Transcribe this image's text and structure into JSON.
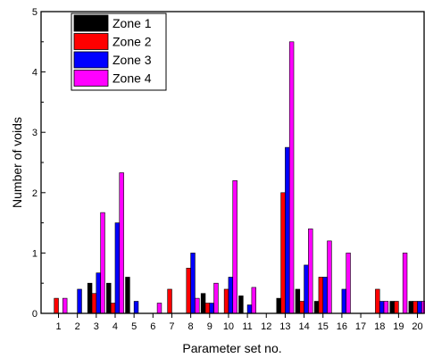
{
  "chart_data": {
    "type": "bar",
    "title": "",
    "xlabel": "Parameter set no.",
    "ylabel": "Number of voids",
    "ylim": [
      0,
      5
    ],
    "yticks": [
      "0",
      "1",
      "2",
      "3",
      "4",
      "5"
    ],
    "categories": [
      "1",
      "2",
      "3",
      "4",
      "5",
      "6",
      "7",
      "8",
      "9",
      "10",
      "11",
      "12",
      "13",
      "14",
      "15",
      "16",
      "17",
      "18",
      "19",
      "20"
    ],
    "grid": false,
    "legend_position": "top-left",
    "series": [
      {
        "name": "Zone 1",
        "color": "#000000",
        "values": [
          0,
          0,
          0.5,
          0.5,
          0.6,
          0,
          0,
          0,
          0.33,
          0,
          0.29,
          0,
          0.25,
          0.4,
          0.2,
          0,
          0,
          0,
          0.2,
          0.2
        ]
      },
      {
        "name": "Zone 2",
        "color": "#ff0000",
        "values": [
          0.25,
          0,
          0.33,
          0.17,
          0,
          0,
          0.4,
          0.75,
          0.17,
          0.4,
          0,
          0,
          2.0,
          0.2,
          0.6,
          0,
          0,
          0.4,
          0.2,
          0.2
        ]
      },
      {
        "name": "Zone 3",
        "color": "#0000ff",
        "values": [
          0,
          0.4,
          0.67,
          1.5,
          0.2,
          0,
          0,
          1.0,
          0.17,
          0.6,
          0.14,
          0,
          2.75,
          0.8,
          0.6,
          0.4,
          0,
          0.2,
          0,
          0.2
        ]
      },
      {
        "name": "Zone 4",
        "color": "#ff00ff",
        "values": [
          0.25,
          0,
          1.67,
          2.33,
          0,
          0.17,
          0,
          0.25,
          0.5,
          2.2,
          0.43,
          0,
          4.5,
          1.4,
          1.2,
          1.0,
          0,
          0.2,
          1.0,
          0.2
        ]
      }
    ]
  }
}
